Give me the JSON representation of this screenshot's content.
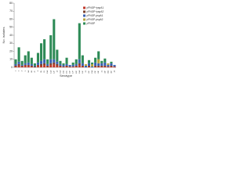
{
  "chart_data": {
    "type": "stacked-bar",
    "ylabel": "No. isolates",
    "xlabel": "Serotype",
    "categories": [
      "1",
      "3",
      "4",
      "5",
      "6A",
      "6B",
      "7F",
      "8",
      "9N",
      "9V",
      "10A",
      "11A",
      "12F",
      "14",
      "15A",
      "15B",
      "15C",
      "16F",
      "17F",
      "18C",
      "19A",
      "19F",
      "20",
      "22F",
      "23A",
      "23F",
      "24F",
      "31",
      "33F",
      "35B",
      "35F",
      "38"
    ],
    "series": [
      {
        "name": "pPNGP+pspA1",
        "color": "#c0392b",
        "values": [
          1,
          2,
          1,
          2,
          2,
          1,
          0,
          2,
          2,
          3,
          1,
          3,
          4,
          2,
          1,
          1,
          1,
          1,
          1,
          1,
          3,
          1,
          0,
          1,
          0,
          1,
          1,
          1,
          1,
          1,
          1,
          1
        ]
      },
      {
        "name": "pPNGP+pspA2",
        "color": "#7b3f2a",
        "values": [
          1,
          2,
          1,
          1,
          1,
          1,
          1,
          1,
          2,
          2,
          1,
          2,
          2,
          2,
          1,
          0,
          1,
          0,
          0,
          1,
          2,
          1,
          0,
          1,
          0,
          1,
          1,
          1,
          1,
          0,
          1,
          0
        ]
      },
      {
        "name": "pPNGP-pspA1",
        "color": "#3a62b0",
        "values": [
          2,
          3,
          1,
          2,
          3,
          2,
          1,
          3,
          4,
          5,
          2,
          5,
          4,
          3,
          2,
          2,
          2,
          2,
          2,
          2,
          5,
          3,
          2,
          3,
          1,
          4,
          3,
          3,
          4,
          2,
          3,
          2
        ]
      },
      {
        "name": "pPNGP-pspA2",
        "color": "#b5a23a",
        "values": [
          0,
          0,
          0,
          0,
          0,
          0,
          0,
          0,
          0,
          0,
          0,
          0,
          0,
          0,
          0,
          0,
          0,
          0,
          0,
          0,
          0,
          0,
          2,
          0,
          3,
          0,
          5,
          0,
          0,
          2,
          0,
          0
        ]
      },
      {
        "name": "pPNGP",
        "color": "#2e8b57",
        "values": [
          6,
          18,
          5,
          10,
          14,
          8,
          3,
          12,
          22,
          25,
          6,
          30,
          50,
          15,
          4,
          2,
          8,
          0,
          3,
          6,
          45,
          10,
          0,
          4,
          2,
          6,
          10,
          3,
          5,
          0,
          2,
          0
        ]
      }
    ],
    "ylim": [
      0,
      80
    ],
    "yticks": [
      0,
      10,
      20,
      30,
      40,
      50,
      60,
      70,
      80
    ],
    "legend": "upper-right"
  }
}
